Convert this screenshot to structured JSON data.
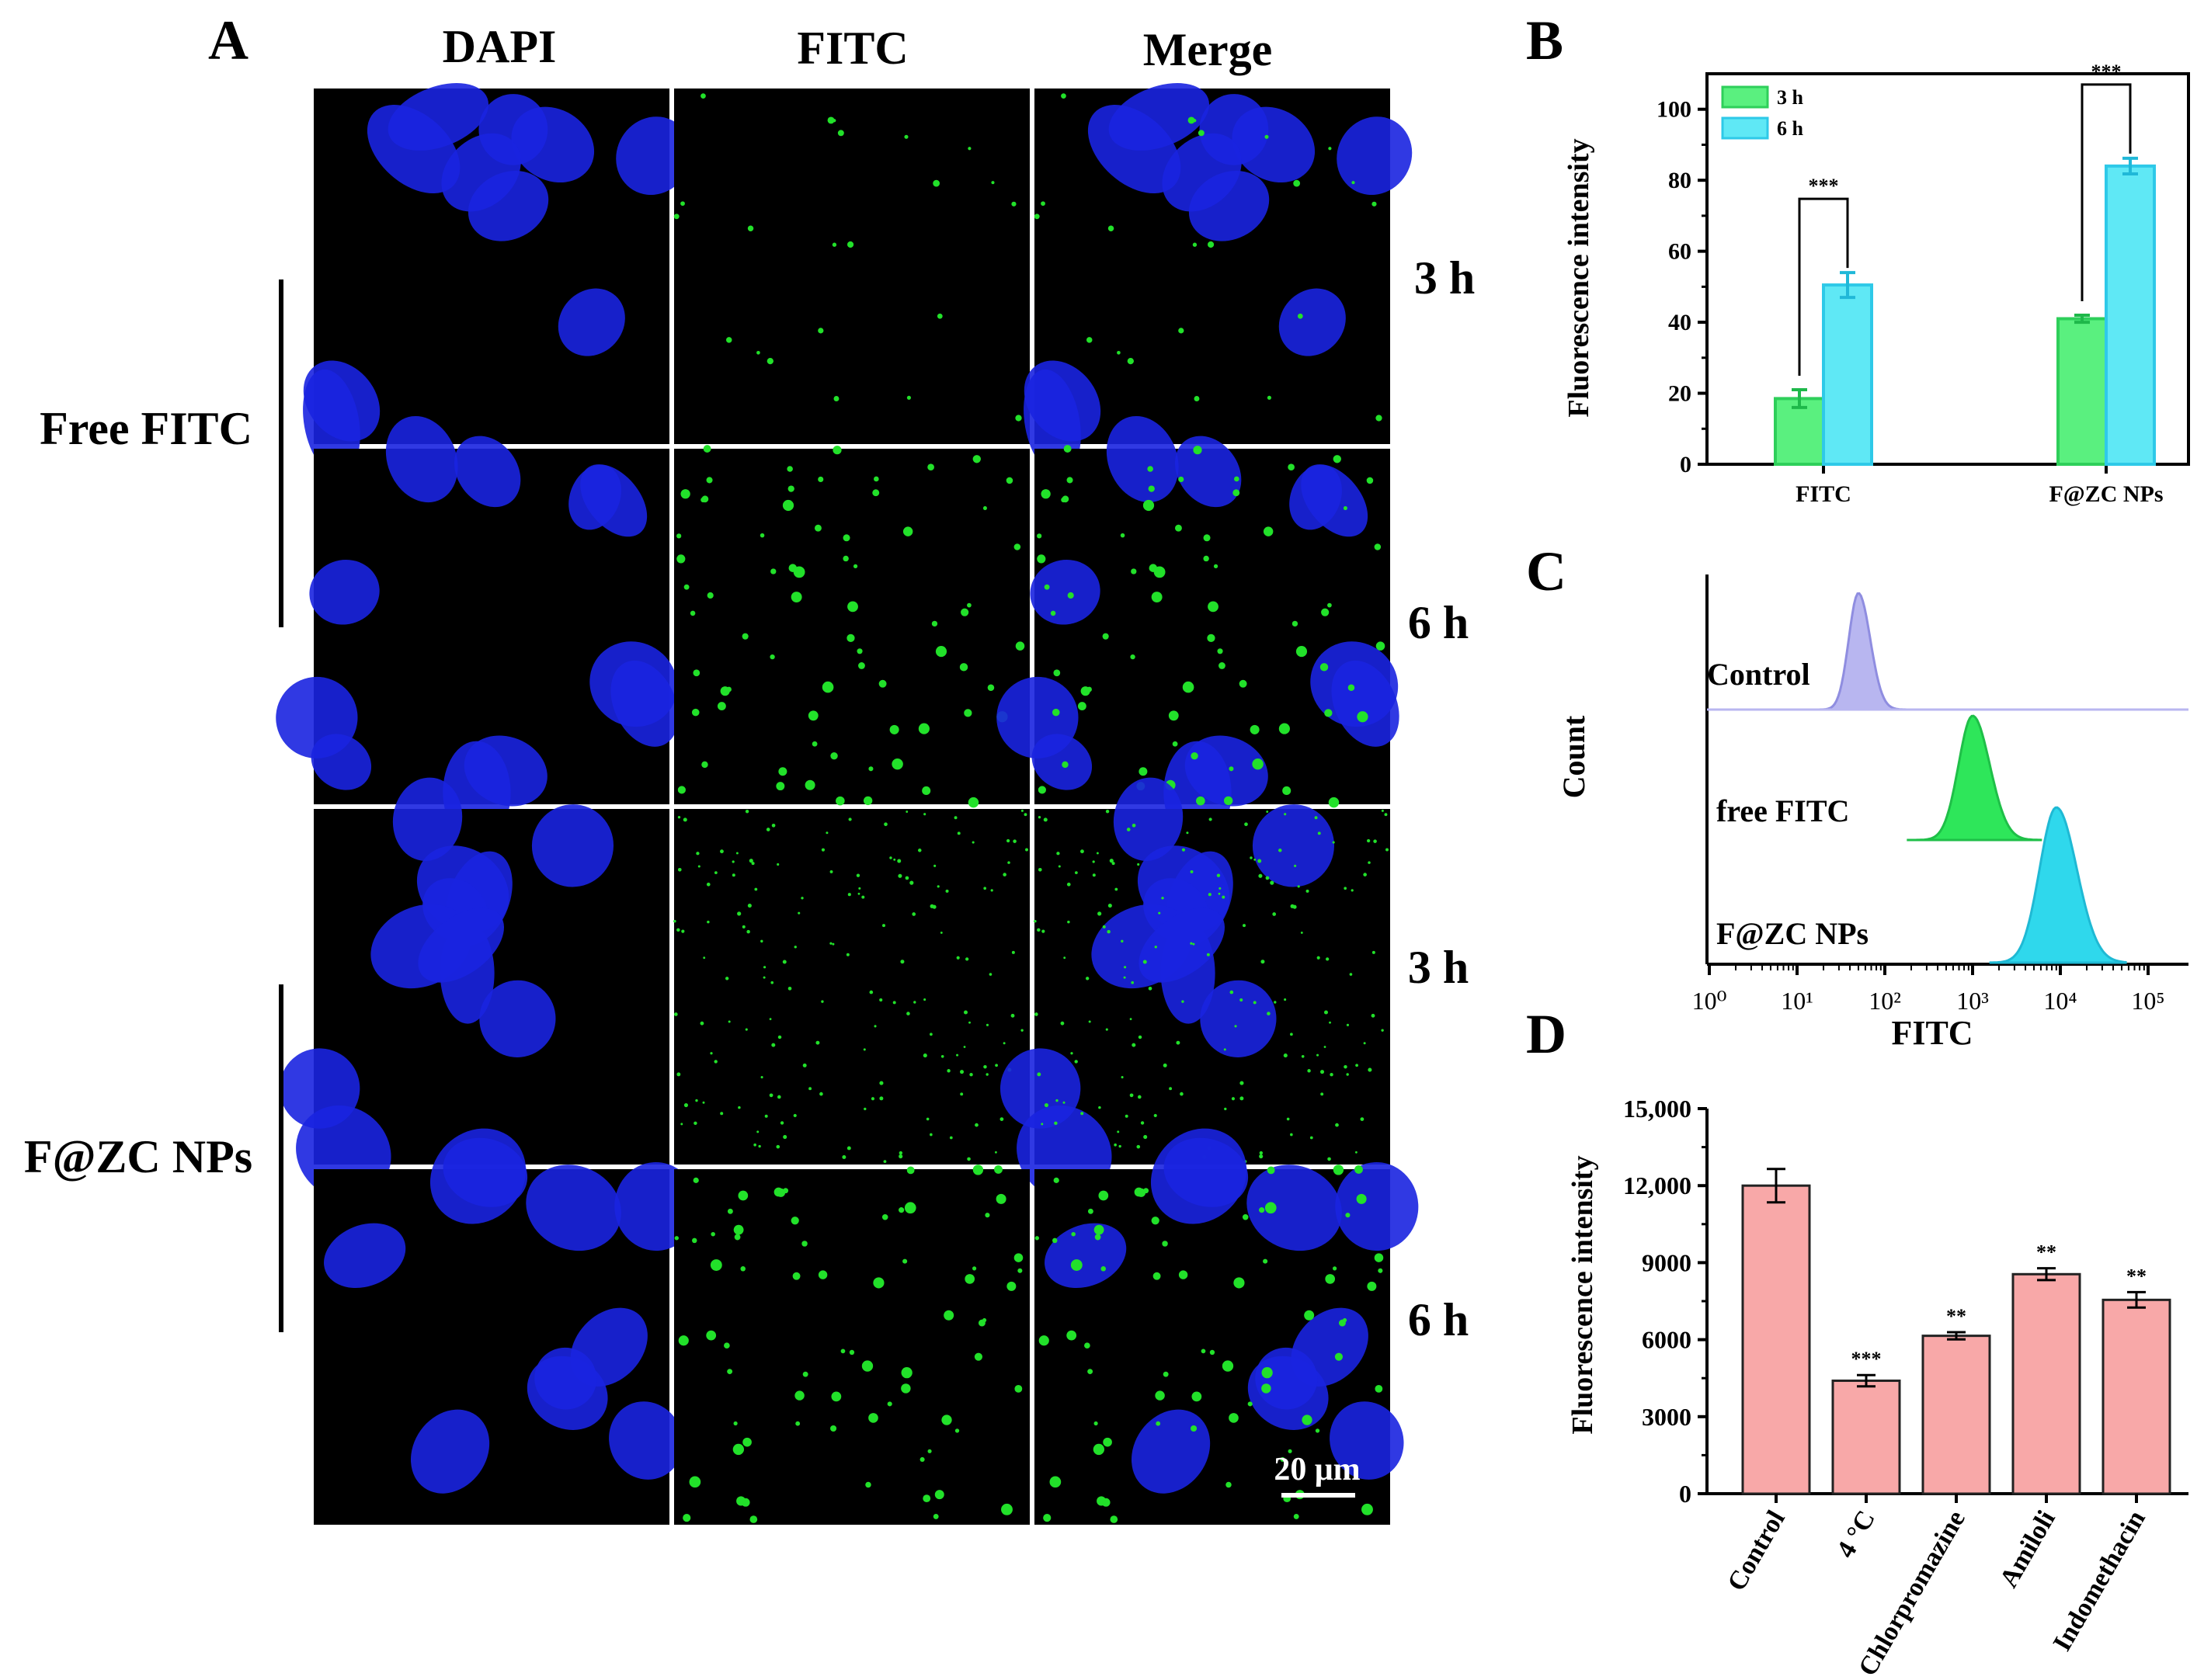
{
  "panel_letters": [
    "A",
    "B",
    "C",
    "D"
  ],
  "micro": {
    "columns": [
      "DAPI",
      "FITC",
      "Merge"
    ],
    "row_times": [
      "3 h",
      "6 h",
      "3 h",
      "6 h"
    ],
    "groups": [
      "Free FITC",
      "F@ZC NPs"
    ],
    "scale_bar": "20 μm",
    "colors": {
      "dapi": "#1a24e0",
      "fitc": "#22e12a",
      "background": "#000000"
    }
  },
  "chart_data": [
    {
      "panel": "B",
      "type": "bar",
      "categories": [
        "FITC",
        "F@ZC NPs"
      ],
      "series": [
        {
          "name": "3 h",
          "values": [
            18.5,
            41
          ],
          "errors": [
            2.5,
            1
          ],
          "color": "#5af07f"
        },
        {
          "name": "6 h",
          "values": [
            50.5,
            84
          ],
          "errors": [
            3.5,
            2.2
          ],
          "color": "#5fe8f5"
        }
      ],
      "significance": [
        "***",
        "***"
      ],
      "ylabel": "Fluorescence intensity",
      "ylim": [
        0,
        110
      ],
      "yticks": [
        "0",
        "20",
        "40",
        "60",
        "80",
        "100"
      ],
      "legend": "top-left"
    },
    {
      "panel": "C",
      "type": "area",
      "xlabel": "FITC",
      "ylabel": "Count",
      "xscale": "log",
      "xticks": [
        "10⁰",
        "10¹",
        "10²",
        "10³",
        "10⁴",
        "10⁵"
      ],
      "series": [
        {
          "name": "Control",
          "peak": 50,
          "color": "#b8b6f0"
        },
        {
          "name": "free FITC",
          "peak": 1000,
          "color": "#2ee65a"
        },
        {
          "name": "F@ZC NPs",
          "peak": 9000,
          "color": "#2fd8ec"
        }
      ]
    },
    {
      "panel": "D",
      "type": "bar",
      "categories": [
        "Control",
        "4 °C",
        "Chlorpromazine",
        "Amiloli",
        "Indomethacin"
      ],
      "values": [
        12000,
        4400,
        6150,
        8550,
        7550
      ],
      "errors": [
        650,
        220,
        140,
        230,
        300
      ],
      "significance": [
        "",
        "***",
        "**",
        "**",
        "**"
      ],
      "ylabel": "Fluorescence intensity",
      "ylim": [
        0,
        15000
      ],
      "yticks": [
        "0",
        "3000",
        "6000",
        "9000",
        "12,000",
        "15,000"
      ],
      "color": "#f8a8a8"
    }
  ]
}
